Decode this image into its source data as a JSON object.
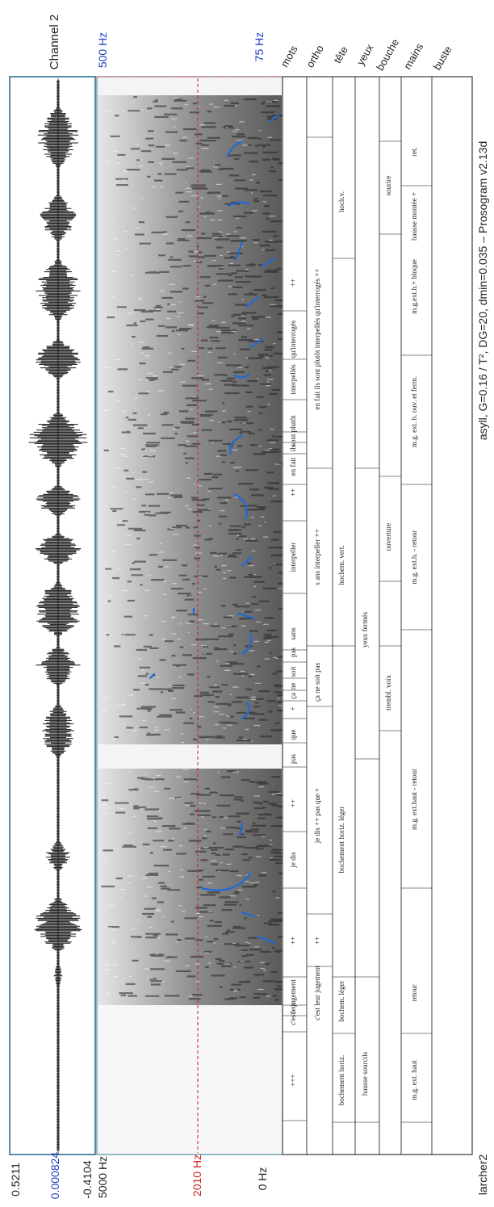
{
  "window": {
    "channel_label": "Channel 2",
    "footer_left": "larcher2",
    "footer_right": "asyll, G=0.16 / T², DG=20, dmin=0.035 – Prosogram v2.13d"
  },
  "waveform": {
    "amp_max": "0.5211",
    "amp_mid": "0.000824",
    "amp_min": "-0.4104"
  },
  "spectrogram": {
    "freq_top": "5000 Hz",
    "freq_ref": "2010 Hz",
    "freq_bottom": "0 Hz",
    "pitch_top": "500 Hz",
    "pitch_bottom": "75 Hz"
  },
  "colors": {
    "axis_blue": "#1f3fbf",
    "reference_red": "#cc2222",
    "pitch_contour": "#1e6ad8",
    "frame_teal": "#2d6f8a"
  },
  "tiers": {
    "names": [
      "mots",
      "ortho",
      "tête",
      "yeux",
      "bouche",
      "mains",
      "buste"
    ],
    "mots": [
      "+++",
      "c'est",
      "leur",
      "jugement",
      "++",
      "je dis",
      "++",
      "pas",
      "que",
      "+",
      "ça",
      "ne",
      "soit",
      "pas",
      "sans",
      "interpeller",
      "++",
      "en fait",
      "ils",
      "sont",
      "plutôt",
      "interpellés",
      "qu'interrogés",
      "++"
    ],
    "ortho": [
      "c'est leur jugement",
      "++",
      "je dis ++ pas que +",
      "ça ne soit pas",
      "s ans interpeller ++",
      "en fait ils sont plutôt interpellés qu'interrogés ++"
    ],
    "tete": [
      "bochement horiz.",
      "bochem. léger",
      "bochement horiz. léger",
      "hochem. vert.",
      "hoch.v."
    ],
    "yeux": [
      "hausse sourcils",
      "yeux fermés"
    ],
    "bouche": [
      "trembl. voix",
      "ouverture",
      "sourire"
    ],
    "mains": [
      "m.g. ext. haut",
      "retour",
      "m.g. ext.haut - retour",
      "m.g. ext.h. - retour",
      "m.g. ext. h. ouv. et ferm.",
      "m.g.ext.h.+ bloque",
      "ret."
    ],
    "buste": [
      "hausse montée +"
    ]
  }
}
